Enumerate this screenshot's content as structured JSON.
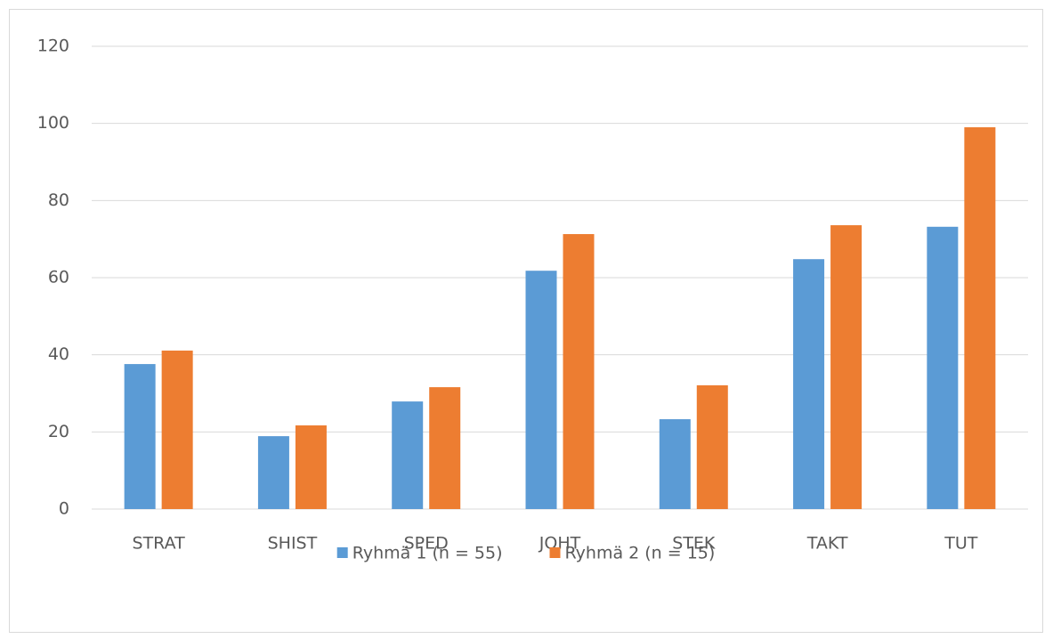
{
  "chart_data": {
    "type": "bar",
    "categories": [
      "STRAT",
      "SHIST",
      "SPED",
      "JOHT",
      "STEK",
      "TAKT",
      "TUT"
    ],
    "series": [
      {
        "name": "Ryhmä 1 (n = 55)",
        "color": "#5b9bd5",
        "values": [
          37.6,
          18.9,
          27.9,
          61.8,
          23.3,
          64.8,
          73.2
        ]
      },
      {
        "name": "Ryhmä 2 (n = 15)",
        "color": "#ed7d31",
        "values": [
          41.1,
          21.7,
          31.6,
          71.3,
          32.1,
          73.6,
          99.0
        ]
      }
    ],
    "ylim": [
      0,
      120
    ],
    "yticks": [
      0,
      20,
      40,
      60,
      80,
      100,
      120
    ],
    "grid": true,
    "legend": "bottom"
  }
}
